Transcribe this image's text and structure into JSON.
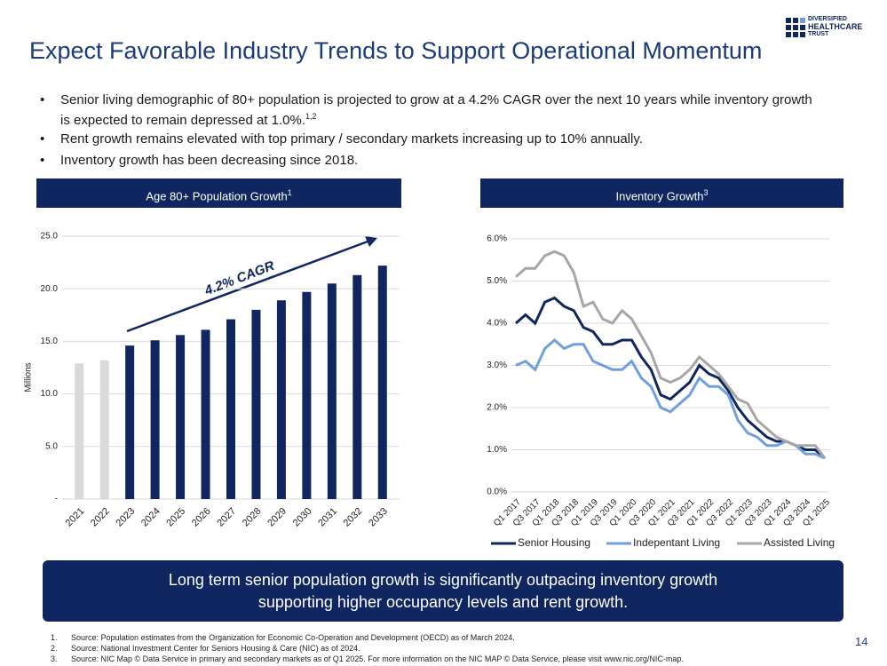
{
  "title": "Expect Favorable Industry Trends to Support Operational Momentum",
  "logo": {
    "lines": [
      "DIVERSIFIED",
      "HEALTHCARE",
      "TRUST"
    ]
  },
  "bullets": [
    {
      "text": "Senior living demographic of 80+ population is projected to grow at a 4.2% CAGR over the next 10 years while inventory growth is expected to remain depressed at 1.0%.",
      "superscript": "1,2"
    },
    {
      "text": "Rent growth remains elevated with top primary / secondary markets increasing up to 10% annually."
    },
    {
      "text": "Inventory growth has been decreasing since 2018."
    }
  ],
  "chart_data": [
    {
      "type": "bar",
      "header": "Age 80+ Population Growth",
      "header_superscript": "1",
      "ylabel": "Millions",
      "annotation": "4.2% CAGR",
      "categories": [
        "2021",
        "2022",
        "2023",
        "2024",
        "2025",
        "2026",
        "2027",
        "2028",
        "2029",
        "2030",
        "2031",
        "2032",
        "2033"
      ],
      "values": [
        12.9,
        13.2,
        14.6,
        15.1,
        15.6,
        16.1,
        17.1,
        18.0,
        18.9,
        19.7,
        20.5,
        21.3,
        22.2
      ],
      "colors": [
        "#d9d9d9",
        "#d9d9d9",
        "#0f2660",
        "#0f2660",
        "#0f2660",
        "#0f2660",
        "#0f2660",
        "#0f2660",
        "#0f2660",
        "#0f2660",
        "#0f2660",
        "#0f2660",
        "#0f2660"
      ],
      "ylim": [
        0,
        25
      ],
      "yticks": [
        {
          "value": 0,
          "label": "-"
        },
        {
          "value": 5,
          "label": "5.0"
        },
        {
          "value": 10,
          "label": "10.0"
        },
        {
          "value": 15,
          "label": "15.0"
        },
        {
          "value": 20,
          "label": "20.0"
        },
        {
          "value": 25,
          "label": "25.0"
        }
      ],
      "grid": true
    },
    {
      "type": "line",
      "header": "Inventory Growth",
      "header_superscript": "3",
      "categories": [
        "Q1 2017",
        null,
        "Q3 2017",
        null,
        "Q1 2018",
        null,
        "Q3 2018",
        null,
        "Q1 2019",
        null,
        "Q3 2019",
        null,
        "Q1 2020",
        null,
        "Q3 2020",
        null,
        "Q1 2021",
        null,
        "Q3 2021",
        null,
        "Q1 2022",
        null,
        "Q3 2022",
        null,
        "Q1 2023",
        null,
        "Q3 2023",
        null,
        "Q1 2024",
        null,
        "Q3 2024",
        null,
        "Q1 2025"
      ],
      "series": [
        {
          "name": "Senior Housing",
          "color": "#0f2660",
          "values": [
            4.0,
            4.2,
            4.0,
            4.5,
            4.6,
            4.4,
            4.3,
            3.9,
            3.8,
            3.5,
            3.5,
            3.6,
            3.6,
            3.2,
            2.9,
            2.3,
            2.2,
            2.4,
            2.6,
            3.0,
            2.8,
            2.7,
            2.4,
            2.0,
            1.7,
            1.5,
            1.3,
            1.2,
            1.2,
            1.1,
            1.0,
            1.0,
            0.8
          ]
        },
        {
          "name": "Indepentant Living",
          "color": "#6f9fdc",
          "values": [
            3.0,
            3.1,
            2.9,
            3.4,
            3.6,
            3.4,
            3.5,
            3.5,
            3.1,
            3.0,
            2.9,
            2.9,
            3.1,
            2.7,
            2.5,
            2.0,
            1.9,
            2.1,
            2.3,
            2.7,
            2.5,
            2.5,
            2.3,
            1.7,
            1.4,
            1.3,
            1.1,
            1.1,
            1.2,
            1.1,
            0.9,
            0.9,
            0.8
          ]
        },
        {
          "name": "Assisted Living",
          "color": "#a6a6a6",
          "values": [
            5.1,
            5.3,
            5.3,
            5.6,
            5.7,
            5.6,
            5.2,
            4.4,
            4.5,
            4.1,
            4.0,
            4.3,
            4.1,
            3.7,
            3.3,
            2.7,
            2.6,
            2.7,
            2.9,
            3.2,
            3.0,
            2.8,
            2.5,
            2.2,
            2.1,
            1.7,
            1.5,
            1.3,
            1.2,
            1.1,
            1.1,
            1.1,
            0.8
          ]
        }
      ],
      "ylim": [
        0,
        6
      ],
      "yticks": [
        {
          "value": 0,
          "label": "0.0%"
        },
        {
          "value": 1,
          "label": "1.0%"
        },
        {
          "value": 2,
          "label": "2.0%"
        },
        {
          "value": 3,
          "label": "3.0%"
        },
        {
          "value": 4,
          "label": "4.0%"
        },
        {
          "value": 5,
          "label": "5.0%"
        },
        {
          "value": 6,
          "label": "6.0%"
        }
      ],
      "grid": true,
      "legend": "bottom"
    }
  ],
  "callout": {
    "lines": [
      "Long term senior population growth is significantly outpacing inventory growth",
      "supporting higher occupancy levels and rent growth."
    ]
  },
  "footnotes": [
    {
      "number": "1.",
      "text": "Source: Population estimates from the Organization for Economic Co-Operation and Development (OECD) as of March 2024."
    },
    {
      "number": "2.",
      "text": "Source: National Investment Center for Seniors Housing & Care (NIC) as of  2024."
    },
    {
      "number": "3.",
      "text": "Source: NIC Map © Data Service in primary and secondary markets as of Q1 2025.  For more information on the NIC MAP © Data Service, please visit www.nic.org/NIC-map."
    }
  ],
  "page_number": "14"
}
